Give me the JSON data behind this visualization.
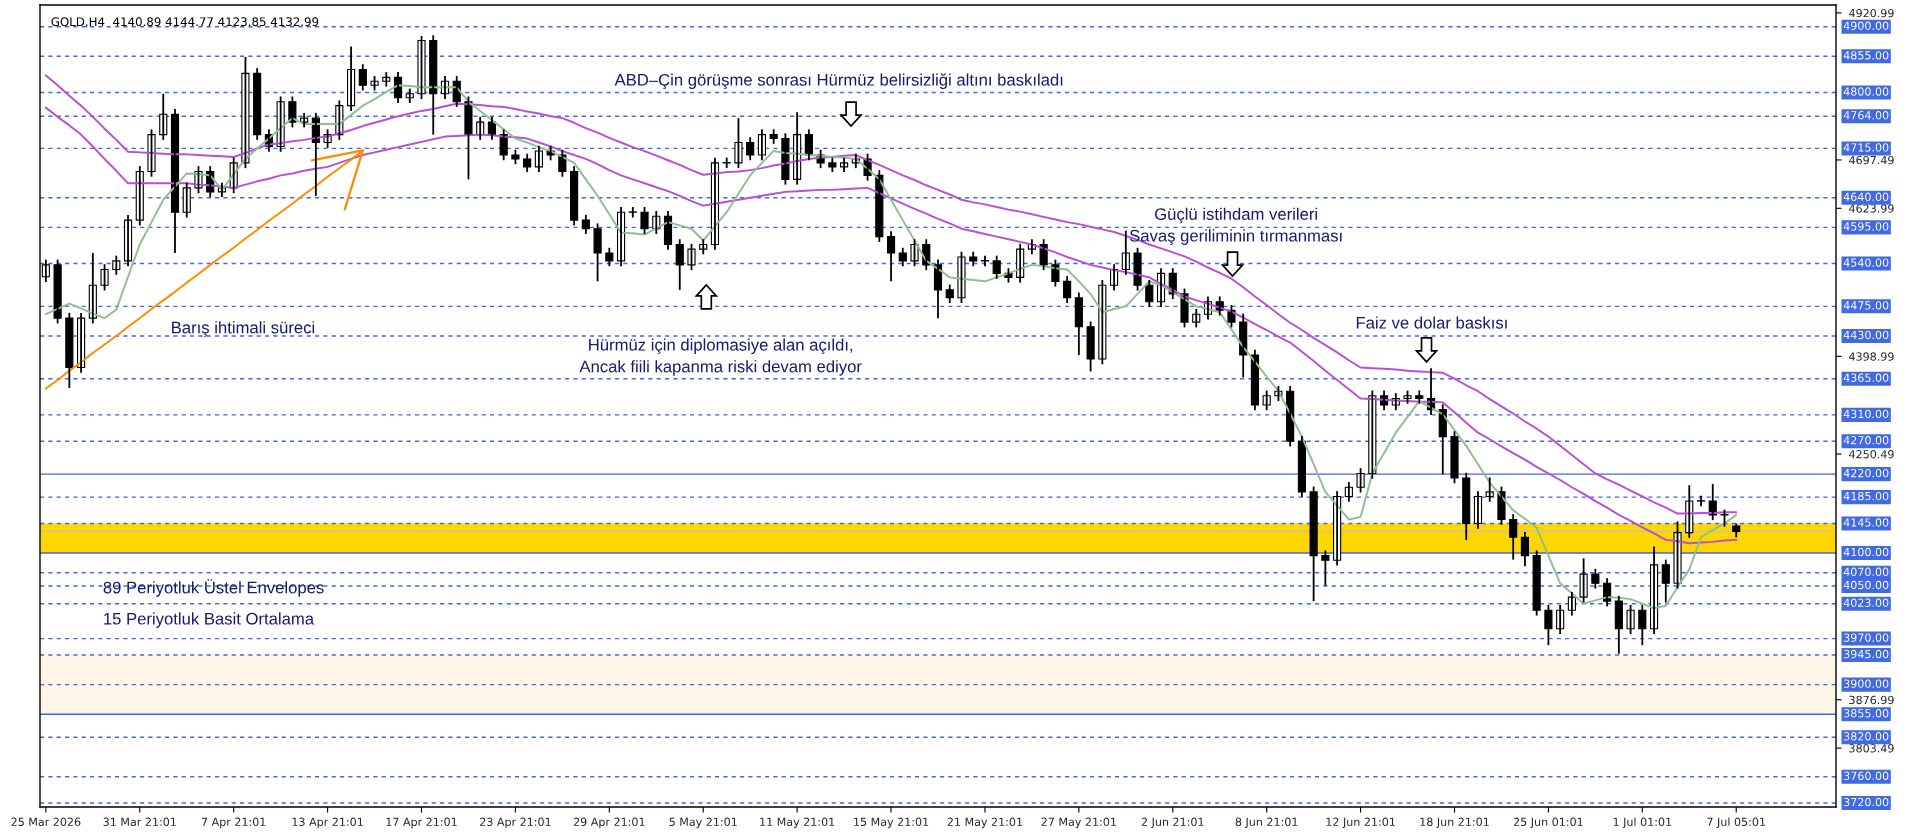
{
  "chart_data": {
    "type": "candlestick",
    "title": "GOLD,H4  4140.89 4144.77 4123.85 4132.99",
    "color": "#000000",
    "categories": [
      "25 Mar 2026",
      null,
      null,
      null,
      null,
      null,
      null,
      null,
      "31 Mar 21:01",
      null,
      null,
      null,
      null,
      null,
      null,
      null,
      "7 Apr 21:01",
      null,
      null,
      null,
      null,
      null,
      null,
      null,
      "13 Apr 21:01",
      null,
      null,
      null,
      null,
      null,
      null,
      null,
      "17 Apr 21:01",
      null,
      null,
      null,
      null,
      null,
      null,
      null,
      "23 Apr 21:01",
      null,
      null,
      null,
      null,
      null,
      null,
      null,
      "29 Apr 21:01",
      null,
      null,
      null,
      null,
      null,
      null,
      null,
      "5 May 21:01",
      null,
      null,
      null,
      null,
      null,
      null,
      null,
      "11 May 21:01",
      null,
      null,
      null,
      null,
      null,
      null,
      null,
      "15 May 21:01",
      null,
      null,
      null,
      null,
      null,
      null,
      null,
      "21 May 21:01",
      null,
      null,
      null,
      null,
      null,
      null,
      null,
      "27 May 21:01",
      null,
      null,
      null,
      null,
      null,
      null,
      null,
      "2 Jun 21:01",
      null,
      null,
      null,
      null,
      null,
      null,
      null,
      "8 Jun 21:01",
      null,
      null,
      null,
      null,
      null,
      null,
      null,
      "12 Jun 21:01",
      null,
      null,
      null,
      null,
      null,
      null,
      null,
      "18 Jun 21:01",
      null,
      null,
      null,
      null,
      null,
      null,
      null,
      "25 Jun 01:01",
      null,
      null,
      null,
      null,
      null,
      null,
      null,
      "1 Jul 01:01",
      null,
      null,
      null,
      null,
      null,
      null,
      null,
      "7 Jul 05:01",
      null,
      null,
      null,
      null,
      null,
      null,
      null,
      null
    ],
    "ohlc": [
      [
        4520,
        4546,
        4512,
        4538
      ],
      [
        4538,
        4546,
        4449,
        4457
      ],
      [
        4457,
        4465,
        4351,
        4382
      ],
      [
        4382,
        4465,
        4374,
        4457
      ],
      [
        4457,
        4556,
        4449,
        4507
      ],
      [
        4507,
        4539,
        4499,
        4531
      ],
      [
        4531,
        4552,
        4523,
        4544
      ],
      [
        4544,
        4614,
        4536,
        4606
      ],
      [
        4606,
        4688,
        4598,
        4680
      ],
      [
        4680,
        4744,
        4672,
        4736
      ],
      [
        4736,
        4798,
        4728,
        4767
      ],
      [
        4767,
        4775,
        4556,
        4618
      ],
      [
        4618,
        4663,
        4610,
        4655
      ],
      [
        4655,
        4688,
        4647,
        4680
      ],
      [
        4680,
        4688,
        4641,
        4649
      ],
      [
        4649,
        4663,
        4641,
        4655
      ],
      [
        4655,
        4701,
        4647,
        4693
      ],
      [
        4693,
        4854,
        4685,
        4829
      ],
      [
        4829,
        4837,
        4728,
        4736
      ],
      [
        4736,
        4744,
        4710,
        4718
      ],
      [
        4718,
        4794,
        4710,
        4786
      ],
      [
        4786,
        4794,
        4747,
        4755
      ],
      [
        4755,
        4769,
        4747,
        4761
      ],
      [
        4761,
        4769,
        4643,
        4724
      ],
      [
        4724,
        4744,
        4716,
        4736
      ],
      [
        4736,
        4788,
        4728,
        4780
      ],
      [
        4780,
        4870,
        4772,
        4835
      ],
      [
        4835,
        4843,
        4803,
        4811
      ],
      [
        4811,
        4825,
        4803,
        4817
      ],
      [
        4817,
        4831,
        4809,
        4823
      ],
      [
        4823,
        4831,
        4784,
        4792
      ],
      [
        4792,
        4806,
        4784,
        4798
      ],
      [
        4798,
        4886,
        4790,
        4879
      ],
      [
        4879,
        4887,
        4736,
        4798
      ],
      [
        4798,
        4825,
        4790,
        4817
      ],
      [
        4817,
        4825,
        4778,
        4786
      ],
      [
        4786,
        4794,
        4668,
        4736
      ],
      [
        4736,
        4763,
        4728,
        4755
      ],
      [
        4755,
        4763,
        4728,
        4736
      ],
      [
        4736,
        4744,
        4697,
        4705
      ],
      [
        4705,
        4713,
        4691,
        4699
      ],
      [
        4699,
        4707,
        4679,
        4687
      ],
      [
        4687,
        4719,
        4679,
        4711
      ],
      [
        4711,
        4719,
        4697,
        4705
      ],
      [
        4705,
        4713,
        4672,
        4680
      ],
      [
        4680,
        4688,
        4598,
        4606
      ],
      [
        4606,
        4614,
        4585,
        4593
      ],
      [
        4593,
        4601,
        4513,
        4556
      ],
      [
        4556,
        4564,
        4536,
        4544
      ],
      [
        4544,
        4626,
        4536,
        4618
      ],
      [
        4618,
        4626,
        4610,
        4618
      ],
      [
        4618,
        4626,
        4585,
        4593
      ],
      [
        4593,
        4620,
        4585,
        4612
      ],
      [
        4612,
        4620,
        4561,
        4569
      ],
      [
        4569,
        4577,
        4500,
        4538
      ],
      [
        4538,
        4570,
        4530,
        4562
      ],
      [
        4562,
        4577,
        4554,
        4569
      ],
      [
        4569,
        4701,
        4561,
        4693
      ],
      [
        4693,
        4701,
        4685,
        4693
      ],
      [
        4693,
        4761,
        4685,
        4724
      ],
      [
        4724,
        4732,
        4697,
        4705
      ],
      [
        4705,
        4744,
        4697,
        4736
      ],
      [
        4736,
        4744,
        4722,
        4730
      ],
      [
        4730,
        4738,
        4660,
        4668
      ],
      [
        4668,
        4770,
        4660,
        4736
      ],
      [
        4736,
        4744,
        4697,
        4705
      ],
      [
        4705,
        4713,
        4685,
        4693
      ],
      [
        4693,
        4701,
        4679,
        4687
      ],
      [
        4687,
        4701,
        4679,
        4693
      ],
      [
        4693,
        4707,
        4685,
        4699
      ],
      [
        4699,
        4707,
        4666,
        4674
      ],
      [
        4674,
        4682,
        4573,
        4581
      ],
      [
        4581,
        4589,
        4513,
        4556
      ],
      [
        4556,
        4564,
        4536,
        4544
      ],
      [
        4544,
        4577,
        4536,
        4569
      ],
      [
        4569,
        4577,
        4530,
        4538
      ],
      [
        4538,
        4546,
        4457,
        4500
      ],
      [
        4500,
        4508,
        4480,
        4488
      ],
      [
        4488,
        4558,
        4480,
        4550
      ],
      [
        4550,
        4558,
        4536,
        4544
      ],
      [
        4544,
        4552,
        4536,
        4544
      ],
      [
        4544,
        4552,
        4517,
        4525
      ],
      [
        4525,
        4533,
        4511,
        4519
      ],
      [
        4519,
        4570,
        4511,
        4562
      ],
      [
        4562,
        4577,
        4554,
        4569
      ],
      [
        4569,
        4577,
        4530,
        4538
      ],
      [
        4538,
        4546,
        4505,
        4513
      ],
      [
        4513,
        4521,
        4480,
        4488
      ],
      [
        4488,
        4496,
        4401,
        4444
      ],
      [
        4444,
        4452,
        4376,
        4395
      ],
      [
        4395,
        4515,
        4387,
        4507
      ],
      [
        4507,
        4539,
        4499,
        4531
      ],
      [
        4531,
        4590,
        4523,
        4556
      ],
      [
        4556,
        4564,
        4499,
        4507
      ],
      [
        4507,
        4515,
        4474,
        4482
      ],
      [
        4482,
        4533,
        4474,
        4525
      ],
      [
        4525,
        4533,
        4486,
        4494
      ],
      [
        4494,
        4502,
        4443,
        4451
      ],
      [
        4451,
        4471,
        4443,
        4463
      ],
      [
        4463,
        4490,
        4455,
        4482
      ],
      [
        4482,
        4490,
        4461,
        4469
      ],
      [
        4469,
        4477,
        4443,
        4451
      ],
      [
        4451,
        4464,
        4367,
        4401
      ],
      [
        4401,
        4409,
        4317,
        4325
      ],
      [
        4325,
        4347,
        4317,
        4339
      ],
      [
        4339,
        4354,
        4331,
        4346
      ],
      [
        4346,
        4354,
        4262,
        4270
      ],
      [
        4270,
        4278,
        4185,
        4193
      ],
      [
        4193,
        4201,
        4027,
        4096
      ],
      [
        4096,
        4104,
        4050,
        4089
      ],
      [
        4089,
        4194,
        4081,
        4186
      ],
      [
        4186,
        4208,
        4178,
        4200
      ],
      [
        4200,
        4229,
        4192,
        4221
      ],
      [
        4221,
        4347,
        4213,
        4339
      ],
      [
        4339,
        4347,
        4317,
        4325
      ],
      [
        4325,
        4343,
        4317,
        4335
      ],
      [
        4335,
        4347,
        4327,
        4339
      ],
      [
        4339,
        4347,
        4327,
        4335
      ],
      [
        4335,
        4381,
        4310,
        4318
      ],
      [
        4318,
        4326,
        4220,
        4277
      ],
      [
        4277,
        4285,
        4206,
        4214
      ],
      [
        4214,
        4222,
        4120,
        4145
      ],
      [
        4145,
        4194,
        4137,
        4186
      ],
      [
        4186,
        4215,
        4178,
        4193
      ],
      [
        4193,
        4201,
        4143,
        4151
      ],
      [
        4151,
        4159,
        4090,
        4124
      ],
      [
        4124,
        4132,
        4080,
        4096
      ],
      [
        4096,
        4104,
        4005,
        4013
      ],
      [
        4013,
        4021,
        3960,
        3985
      ],
      [
        3985,
        4021,
        3977,
        4013
      ],
      [
        4013,
        4041,
        4005,
        4033
      ],
      [
        4033,
        4092,
        4025,
        4068
      ],
      [
        4068,
        4076,
        4046,
        4054
      ],
      [
        4054,
        4062,
        4019,
        4027
      ],
      [
        4027,
        4035,
        3947,
        3985
      ],
      [
        3985,
        4021,
        3977,
        4013
      ],
      [
        4013,
        4021,
        3960,
        3985
      ],
      [
        3985,
        4110,
        3977,
        4082
      ],
      [
        4082,
        4090,
        4025,
        4054
      ],
      [
        4054,
        4148,
        4046,
        4131
      ],
      [
        4131,
        4203,
        4123,
        4179
      ],
      [
        4179,
        4187,
        4171,
        4179
      ],
      [
        4179,
        4205,
        4150,
        4158
      ],
      [
        4158,
        4166,
        4140,
        4158
      ],
      [
        4140.89,
        4144.77,
        4123.85,
        4132.99
      ],
      null,
      null,
      null,
      null,
      null,
      null,
      null,
      null
    ],
    "series": [
      {
        "type": "line",
        "color": "#b84fd6",
        "values": [
          4826,
          4811,
          4795,
          4780,
          4763,
          4745,
          4728,
          4710,
          4709,
          4708,
          4707,
          4706,
          4706,
          4705,
          4704,
          4703,
          4702,
          4708,
          4715,
          4721,
          4723,
          4726,
          4728,
          4731,
          4733,
          4738,
          4743,
          4749,
          4754,
          4759,
          4764,
          4768,
          4772,
          4775,
          4779,
          4783,
          4782,
          4781,
          4779,
          4778,
          4775,
          4771,
          4768,
          4764,
          4761,
          4754,
          4746,
          4739,
          4731,
          4724,
          4717,
          4711,
          4704,
          4697,
          4690,
          4682,
          4675,
          4677,
          4679,
          4680,
          4682,
          4685,
          4689,
          4692,
          4696,
          4699,
          4701,
          4702,
          4704,
          4705,
          4697,
          4690,
          4682,
          4674,
          4667,
          4659,
          4652,
          4645,
          4637,
          4633,
          4630,
          4626,
          4622,
          4619,
          4615,
          4611,
          4607,
          4603,
          4600,
          4596,
          4592,
          4588,
          4582,
          4576,
          4569,
          4563,
          4557,
          4551,
          4543,
          4534,
          4526,
          4517,
          4504,
          4490,
          4477,
          4463,
          4450,
          4439,
          4427,
          4416,
          4405,
          4393,
          4382,
          4381,
          4380,
          4379,
          4377,
          4376,
          4375,
          4374,
          4365,
          4355,
          4346,
          4334,
          4323,
          4312,
          4300,
          4289,
          4277,
          4263,
          4249,
          4235,
          4221,
          4212,
          4204,
          4195,
          4186,
          4177,
          4169,
          4160,
          4160,
          4161,
          4161,
          4162,
          4162,
          null,
          null,
          null,
          null,
          null,
          null,
          null,
          null
        ]
      },
      {
        "type": "line",
        "color": "#b84fd6",
        "values": [
          4777,
          4763,
          4750,
          4736,
          4718,
          4699,
          4681,
          4662,
          4662,
          4662,
          4662,
          4662,
          4662,
          4660,
          4659,
          4657,
          4655,
          4660,
          4665,
          4669,
          4674,
          4677,
          4681,
          4684,
          4687,
          4693,
          4699,
          4705,
          4709,
          4713,
          4717,
          4721,
          4725,
          4729,
          4733,
          4734,
          4735,
          4736,
          4735,
          4733,
          4732,
          4730,
          4724,
          4718,
          4711,
          4705,
          4699,
          4691,
          4682,
          4674,
          4668,
          4662,
          4656,
          4650,
          4643,
          4635,
          4628,
          4631,
          4634,
          4637,
          4640,
          4643,
          4646,
          4649,
          4650,
          4651,
          4652,
          4652,
          4653,
          4654,
          4655,
          4647,
          4639,
          4631,
          4623,
          4616,
          4608,
          4601,
          4593,
          4589,
          4585,
          4581,
          4577,
          4573,
          4569,
          4563,
          4557,
          4550,
          4544,
          4538,
          4534,
          4530,
          4527,
          4523,
          4519,
          4509,
          4500,
          4490,
          4484,
          4479,
          4473,
          4467,
          4458,
          4448,
          4439,
          4429,
          4420,
          4406,
          4392,
          4377,
          4363,
          4349,
          4335,
          4334,
          4333,
          4332,
          4331,
          4330,
          4330,
          4329,
          4314,
          4298,
          4283,
          4273,
          4262,
          4252,
          4242,
          4231,
          4221,
          4211,
          4200,
          4190,
          4179,
          4169,
          4158,
          4149,
          4139,
          4130,
          4120,
          4118,
          4115,
          4116,
          4117,
          4119,
          4120,
          null,
          null,
          null,
          null,
          null,
          null,
          null,
          null
        ]
      },
      {
        "type": "line",
        "color": "#8fbf8f",
        "values": [
          4463,
          4471,
          4479,
          4472,
          4464,
          4457,
          4470,
          4520,
          4569,
          4603,
          4637,
          4657,
          4677,
          4676,
          4674,
          4652,
          4676,
          4699,
          4715,
          4730,
          4746,
          4761,
          4752,
          4752,
          4752,
          4752,
          4766,
          4780,
          4790,
          4801,
          4811,
          4810,
          4808,
          4808,
          4808,
          4808,
          4786,
          4772,
          4758,
          4744,
          4730,
          4724,
          4717,
          4711,
          4702,
          4693,
          4668,
          4643,
          4615,
          4587,
          4586,
          4584,
          4594,
          4603,
          4598,
          4593,
          4575,
          4597,
          4618,
          4646,
          4674,
          4693,
          4711,
          4708,
          4707,
          4705,
          4704,
          4702,
          4701,
          4699,
          4684,
          4668,
          4637,
          4606,
          4575,
          4544,
          4532,
          4519,
          4517,
          4515,
          4513,
          4519,
          4525,
          4532,
          4538,
          4536,
          4533,
          4531,
          4513,
          4494,
          4466,
          4471,
          4475,
          4494,
          4513,
          4507,
          4496,
          4486,
          4475,
          4471,
          4466,
          4440,
          4413,
          4391,
          4368,
          4346,
          4312,
          4277,
          4235,
          4193,
          4172,
          4151,
          4155,
          4221,
          4252,
          4283,
          4307,
          4331,
          4321,
          4311,
          4287,
          4263,
          4235,
          4207,
          4186,
          4165,
          4152,
          4138,
          4096,
          4054,
          4039,
          4023,
          4028,
          4033,
          4032,
          4030,
          4023,
          4016,
          4020,
          4048,
          4075,
          4124,
          4135,
          4145,
          4158,
          null,
          null,
          null,
          null,
          null,
          null,
          null,
          null
        ]
      },
      {
        "type": "line",
        "color": "#ff8c00",
        "values": [
          4350,
          4363,
          4377,
          4390,
          4404,
          4417,
          4430,
          4444,
          4457,
          4471,
          4484,
          4497,
          4511,
          4524,
          4538,
          4551,
          4564,
          4578,
          4591,
          4605,
          4618,
          4631,
          4645,
          4658,
          4672,
          4685,
          4698,
          4712,
          null,
          null,
          null,
          null,
          null,
          null,
          null,
          null,
          null,
          null,
          null,
          null,
          null,
          null,
          null,
          null,
          null,
          null,
          null,
          null,
          null,
          null,
          null,
          null,
          null,
          null,
          null,
          null,
          null,
          null,
          null,
          null,
          null,
          null,
          null,
          null,
          null,
          null,
          null,
          null,
          null,
          null,
          null,
          null,
          null,
          null,
          null,
          null,
          null,
          null,
          null,
          null,
          null,
          null,
          null,
          null,
          null,
          null,
          null,
          null,
          null,
          null,
          null,
          null,
          null,
          null,
          null,
          null,
          null,
          null,
          null,
          null,
          null,
          null,
          null,
          null,
          null,
          null,
          null,
          null,
          null,
          null,
          null,
          null,
          null,
          null,
          null,
          null,
          null,
          null,
          null,
          null,
          null,
          null,
          null,
          null,
          null,
          null,
          null,
          null,
          null,
          null,
          null,
          null,
          null,
          null,
          null,
          null,
          null,
          null,
          null,
          null,
          null,
          null,
          null,
          null,
          null,
          null,
          null,
          null,
          null,
          null,
          null,
          null,
          null
        ]
      }
    ],
    "ylim": [
      3714,
      4933
    ],
    "yticks": [
      4920.99,
      4697.49,
      4623.99,
      4398.99,
      4250.49,
      3876.99,
      3803.49
    ],
    "bands": [
      {
        "axis": "y",
        "from": 4100,
        "to": 4145,
        "color": "#ffd700"
      },
      {
        "axis": "y",
        "from": 3855,
        "to": 3945,
        "color": "#fdf5e6"
      }
    ],
    "ref_lines": [
      {
        "axis": "y",
        "value": 4900,
        "label": "4900.00",
        "color": "#4169e1",
        "line_style": "dashed"
      },
      {
        "axis": "y",
        "value": 4855,
        "label": "4855.00",
        "color": "#4169e1",
        "line_style": "dashed"
      },
      {
        "axis": "y",
        "value": 4800,
        "label": "4800.00",
        "color": "#4169e1",
        "line_style": "dashed"
      },
      {
        "axis": "y",
        "value": 4764,
        "label": "4764.00",
        "color": "#4169e1",
        "line_style": "dashed"
      },
      {
        "axis": "y",
        "value": 4715,
        "label": "4715.00",
        "color": "#4169e1",
        "line_style": "dashed"
      },
      {
        "axis": "y",
        "value": 4640,
        "label": "4640.00",
        "color": "#4169e1",
        "line_style": "dashed"
      },
      {
        "axis": "y",
        "value": 4595,
        "label": "4595.00",
        "color": "#4169e1",
        "line_style": "dashed"
      },
      {
        "axis": "y",
        "value": 4540,
        "label": "4540.00",
        "color": "#4169e1",
        "line_style": "dashed"
      },
      {
        "axis": "y",
        "value": 4475,
        "label": "4475.00",
        "color": "#4169e1",
        "line_style": "dashed"
      },
      {
        "axis": "y",
        "value": 4430,
        "label": "4430.00",
        "color": "#4169e1",
        "line_style": "dashed"
      },
      {
        "axis": "y",
        "value": 4365,
        "label": "4365.00",
        "color": "#4169e1",
        "line_style": "dashed"
      },
      {
        "axis": "y",
        "value": 4310,
        "label": "4310.00",
        "color": "#4169e1",
        "line_style": "dashed"
      },
      {
        "axis": "y",
        "value": 4270,
        "label": "4270.00",
        "color": "#4169e1",
        "line_style": "dashed"
      },
      {
        "axis": "y",
        "value": 4220,
        "label": "4220.00",
        "color": "#4169e1",
        "line_style": "solid"
      },
      {
        "axis": "y",
        "value": 4185,
        "label": "4185.00",
        "color": "#4169e1",
        "line_style": "dashed"
      },
      {
        "axis": "y",
        "value": 4145,
        "label": "4145.00",
        "color": "#4169e1",
        "line_style": "dashed"
      },
      {
        "axis": "y",
        "value": 4132.99,
        "color": "#c0c0c0",
        "line_style": "solid"
      },
      {
        "axis": "y",
        "value": 4100,
        "label": "4100.00",
        "color": "#4169e1",
        "line_style": "solid"
      },
      {
        "axis": "y",
        "value": 4070,
        "label": "4070.00",
        "color": "#4169e1",
        "line_style": "dashed"
      },
      {
        "axis": "y",
        "value": 4050,
        "label": "4050.00",
        "color": "#4169e1",
        "line_style": "dashed"
      },
      {
        "axis": "y",
        "value": 4023,
        "label": "4023.00",
        "color": "#4169e1",
        "line_style": "dashed"
      },
      {
        "axis": "y",
        "value": 3970,
        "label": "3970.00",
        "color": "#4169e1",
        "line_style": "dashed"
      },
      {
        "axis": "y",
        "value": 3945,
        "label": "3945.00",
        "color": "#4169e1",
        "line_style": "dashed"
      },
      {
        "axis": "y",
        "value": 3900,
        "label": "3900.00",
        "color": "#4169e1",
        "line_style": "dashed"
      },
      {
        "axis": "y",
        "value": 3855,
        "label": "3855.00",
        "color": "#4169e1",
        "line_style": "solid"
      },
      {
        "axis": "y",
        "value": 3820,
        "label": "3820.00",
        "color": "#4169e1",
        "line_style": "dashed"
      },
      {
        "axis": "y",
        "value": 3760,
        "label": "3760.00",
        "color": "#4169e1",
        "line_style": "dashed"
      },
      {
        "axis": "y",
        "value": 3720,
        "label": "3720.00",
        "color": "#4169e1",
        "line_style": "dashed"
      }
    ],
    "annotations": [
      "ABD–Çin görüşme sonrası Hürmüz belirsizliği altını baskıladı",
      "Hürmüz için diplomasiye alan açıldı,\nAncak fiili kapanma riski devam ediyor",
      "Güçlü istihdam verileri\nSavaş geriliminin tırmanması",
      "Faiz ve dolar baskısı",
      "Barış ihtimali süreci",
      "89 Periyotluk Üstel Envelopes",
      "15 Periyotluk Basit Ortalama"
    ],
    "grid": false
  }
}
